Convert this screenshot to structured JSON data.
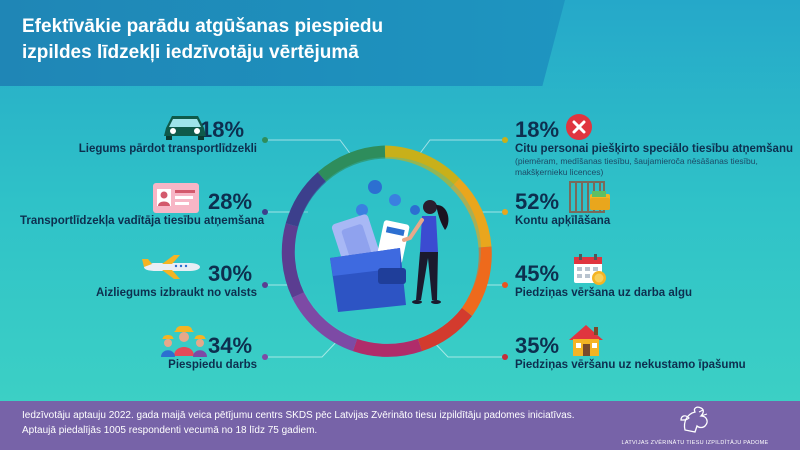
{
  "title": {
    "line1": "Efektīvākie parādu atgūšanas piespiedu",
    "line2": "izpildes līdzekļi iedzīvotāju vērtējumā"
  },
  "left_items": [
    {
      "percent": "18%",
      "label": "Liegums pārdot transportlīdzekli",
      "icon": "car-icon",
      "dot_color": "#2e8d5c"
    },
    {
      "percent": "28%",
      "label": "Transportlīdzekļa vadītāja tiesību atņemšana",
      "icon": "driver-license-icon",
      "dot_color": "#3c3f8c"
    },
    {
      "percent": "30%",
      "label": "Aizliegums izbraukt no valsts",
      "icon": "airplane-icon",
      "dot_color": "#5b3d91"
    },
    {
      "percent": "34%",
      "label": "Piespiedu darbs",
      "icon": "workers-icon",
      "dot_color": "#7d4aa5"
    }
  ],
  "right_items": [
    {
      "percent": "18%",
      "label": "Citu personai piešķirto speciālo tiesību atņemšanu",
      "note": "(piemēram, medīšanas tiesību, šaujamieroča nēsāšanas tiesību, makšķernieku licences)",
      "icon": "cross-icon",
      "dot_color": "#c8b01a"
    },
    {
      "percent": "52%",
      "label": "Kontu apķīlāšana",
      "icon": "wallet-bars-icon",
      "dot_color": "#e9a61d"
    },
    {
      "percent": "45%",
      "label": "Piedziņas vēršana uz darba algu",
      "icon": "calendar-coin-icon",
      "dot_color": "#e9541f"
    },
    {
      "percent": "35%",
      "label": "Piedziņas vēršanu uz nekustamo īpašumu",
      "icon": "house-icon",
      "dot_color": "#c42e3a"
    }
  ],
  "footer": {
    "text": "Iedzīvotāju aptauju 2022. gada maijā veica pētījumu centrs SKDS pēc Latvijas Zvērināto tiesu izpildītāju padomes iniciatīvas. Aptaujā piedalījās 1005 respondenti vecumā no 18 līdz 75 gadiem.",
    "logo_text": "LATVIJAS ZVĒRINĀTU TIESU IZPILDĪTĀJU PADOME",
    "logo_icon": "griffin-logo-icon"
  },
  "center_icon": "woman-with-wallet-illustration"
}
